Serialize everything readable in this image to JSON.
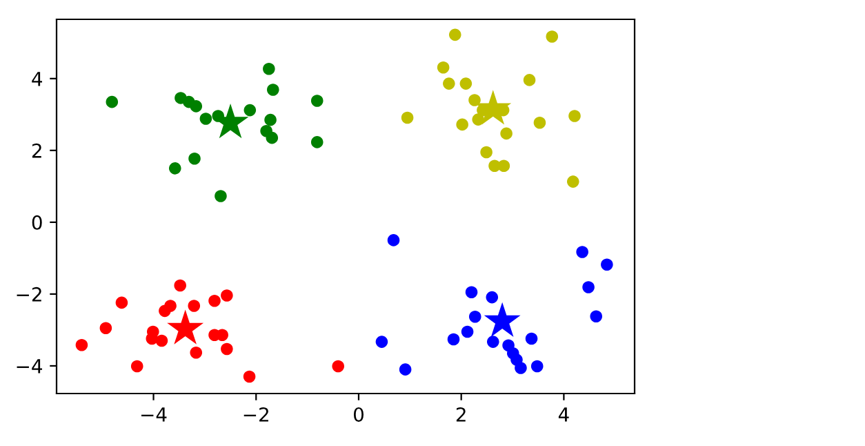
{
  "chart_data": {
    "type": "scatter",
    "xlim": [
      -5.89,
      5.38
    ],
    "ylim": [
      -4.77,
      5.65
    ],
    "xticks": [
      {
        "value": -4,
        "label": "−4"
      },
      {
        "value": -2,
        "label": "−2"
      },
      0,
      2,
      4
    ],
    "yticks": [
      {
        "value": -4,
        "label": "−4"
      },
      {
        "value": -2,
        "label": "−2"
      },
      0,
      2,
      4
    ],
    "grid": false,
    "legend": false,
    "series": [
      {
        "color": "#008000",
        "marker": "circle",
        "x": [
          -4.81,
          -3.47,
          -3.31,
          -3.17,
          -2.98,
          -2.74,
          -2.15,
          -2.12,
          -1.75,
          -1.67,
          -1.72,
          -1.8,
          -1.69,
          -0.81,
          -0.81,
          -3.58,
          -3.2,
          -2.69
        ],
        "values": [
          3.35,
          3.46,
          3.35,
          3.23,
          2.88,
          2.96,
          null,
          3.12,
          4.27,
          3.69,
          2.85,
          2.54,
          2.35,
          3.38,
          2.23,
          1.5,
          1.77,
          0.73
        ]
      },
      {
        "color": "#bfbf00",
        "marker": "circle",
        "x": [
          1.88,
          3.77,
          1.65,
          1.76,
          2.09,
          3.33,
          2.26,
          0.95,
          2.33,
          2.42,
          2.82,
          2.02,
          3.53,
          4.21,
          2.88,
          2.49,
          2.65,
          2.83,
          4.18
        ],
        "values": [
          5.22,
          5.17,
          4.31,
          3.86,
          3.86,
          3.96,
          3.4,
          2.91,
          2.86,
          3.12,
          3.12,
          2.72,
          2.77,
          2.96,
          2.47,
          1.95,
          1.57,
          1.57,
          1.13
        ]
      },
      {
        "color": "#ff0000",
        "marker": "circle",
        "x": [
          -3.48,
          -4.62,
          -3.78,
          -3.67,
          -3.21,
          -2.81,
          -2.57,
          -4.93,
          -4.01,
          -4.03,
          -3.84,
          -2.81,
          -2.66,
          -5.4,
          -3.17,
          -2.57,
          -4.32,
          -2.13,
          -0.4
        ],
        "values": [
          -1.76,
          -2.24,
          -2.47,
          -2.33,
          -2.33,
          -2.19,
          -2.04,
          -2.95,
          -3.05,
          -3.24,
          -3.3,
          -3.14,
          -3.14,
          -3.42,
          -3.63,
          -3.53,
          -4.01,
          -4.3,
          -4.01
        ]
      },
      {
        "color": "#0000ff",
        "marker": "circle",
        "x": [
          0.68,
          4.36,
          4.84,
          4.48,
          4.63,
          2.2,
          2.6,
          2.27,
          2.12,
          1.85,
          2.62,
          3.37,
          2.92,
          3.01,
          3.08,
          3.16,
          3.48,
          0.45,
          0.91
        ],
        "values": [
          -0.5,
          -0.83,
          -1.18,
          -1.81,
          -2.62,
          -1.95,
          -2.09,
          -2.63,
          -3.05,
          -3.26,
          -3.33,
          -3.24,
          -3.43,
          -3.65,
          -3.83,
          -4.06,
          -4.01,
          -3.33,
          -4.1
        ]
      },
      {
        "color": "#008000",
        "marker": "star",
        "x": [
          -2.5
        ],
        "values": [
          2.77
        ]
      },
      {
        "color": "#bfbf00",
        "marker": "star",
        "x": [
          2.62
        ],
        "values": [
          3.15
        ]
      },
      {
        "color": "#ff0000",
        "marker": "star",
        "x": [
          -3.38
        ],
        "values": [
          -2.97
        ]
      },
      {
        "color": "#0000ff",
        "marker": "star",
        "x": [
          2.8
        ],
        "values": [
          -2.76
        ]
      }
    ]
  }
}
